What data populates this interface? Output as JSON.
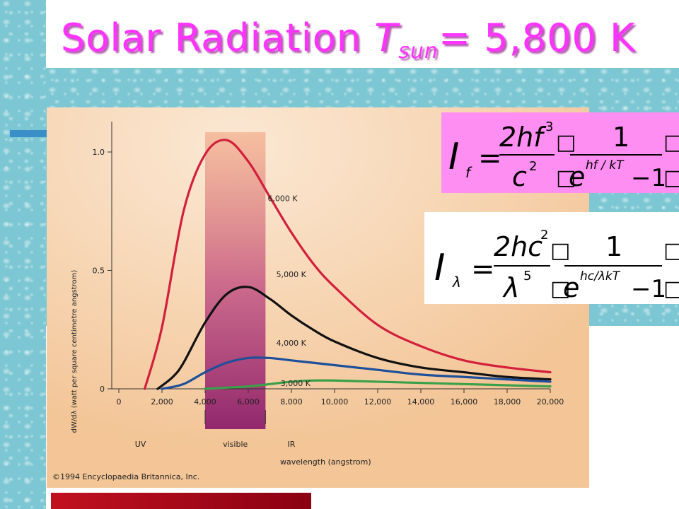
{
  "slide": {
    "title_main": "Solar Radiation ",
    "title_T": "T",
    "title_sub": "sun",
    "title_rest": "= 5,800 K"
  },
  "colors": {
    "title": "#ff33ff",
    "chart_bg": "#f6cda5",
    "visible_band": "#a3307a",
    "curve_6000": "#d31f3c",
    "curve_5000": "#111111",
    "curve_4000": "#1d4f9a",
    "curve_3000": "#3aa04a",
    "equation_box": "#ff8ef2"
  },
  "equations": {
    "eq1": {
      "lhs": "I",
      "lhs_sub": "f",
      "equals": "=",
      "num": "2hf",
      "num_exp": "3",
      "den": "c",
      "den_exp": "2",
      "frac2_num": "1",
      "exp_base": "e",
      "exp": "hf / kT",
      "minus_one": "−1",
      "box_glyph": "□"
    },
    "eq2": {
      "lhs": "I",
      "lhs_sub": "λ",
      "equals": "=",
      "num": "2hc",
      "num_exp": "2",
      "den": "λ",
      "den_exp": "5",
      "frac2_num": "1",
      "exp_base": "e",
      "exp": "hc/λkT",
      "minus_one": "−1",
      "box_glyph": "□"
    }
  },
  "chart_data": {
    "type": "line",
    "ylabel": "dW/dλ (watt per square centimetre angstrom)",
    "xlabel": "wavelength (angstrom)",
    "x_ticks": [
      "0",
      "2,000",
      "4,000",
      "6,000",
      "8,000",
      "10,000",
      "12,000",
      "14,000",
      "16,000",
      "18,000",
      "20,000"
    ],
    "x_tick_values": [
      0,
      2000,
      4000,
      6000,
      8000,
      10000,
      12000,
      14000,
      16000,
      18000,
      20000
    ],
    "y_ticks": [
      "0",
      "0.5",
      "1.0"
    ],
    "y_tick_values": [
      0,
      0.5,
      1.0
    ],
    "xlim": [
      0,
      20000
    ],
    "ylim": [
      0,
      1.15
    ],
    "regions": [
      {
        "label": "UV",
        "x": 1000
      },
      {
        "label": "visible",
        "x": 5400,
        "from": 4000,
        "to": 6800
      },
      {
        "label": "IR",
        "x": 8000
      }
    ],
    "copyright": "©1994 Encyclopaedia Britannica, Inc.",
    "series": [
      {
        "name": "6,000 K",
        "color": "#d31f3c",
        "temp": 6000,
        "x": [
          1200,
          2000,
          3000,
          4000,
          5000,
          6000,
          7000,
          8000,
          9000,
          10000,
          12000,
          14000,
          16000,
          18000,
          20000
        ],
        "y": [
          0.0,
          0.26,
          0.75,
          0.99,
          1.05,
          0.96,
          0.81,
          0.66,
          0.53,
          0.43,
          0.27,
          0.18,
          0.12,
          0.09,
          0.07
        ]
      },
      {
        "name": "5,000 K",
        "color": "#111111",
        "temp": 5000,
        "x": [
          1800,
          2500,
          3000,
          4000,
          5000,
          6000,
          7000,
          8000,
          9000,
          10000,
          12000,
          14000,
          16000,
          18000,
          20000
        ],
        "y": [
          0.0,
          0.05,
          0.11,
          0.28,
          0.4,
          0.43,
          0.38,
          0.31,
          0.25,
          0.2,
          0.13,
          0.09,
          0.07,
          0.05,
          0.04
        ]
      },
      {
        "name": "4,000 K",
        "color": "#1d4f9a",
        "temp": 4000,
        "x": [
          2000,
          3000,
          4000,
          5000,
          6000,
          7000,
          8000,
          9000,
          10000,
          12000,
          14000,
          16000,
          18000,
          20000
        ],
        "y": [
          0.0,
          0.02,
          0.07,
          0.11,
          0.13,
          0.13,
          0.12,
          0.11,
          0.1,
          0.08,
          0.06,
          0.05,
          0.04,
          0.03
        ]
      },
      {
        "name": "3,000 K",
        "color": "#3aa04a",
        "temp": 3000,
        "x": [
          4000,
          5000,
          6000,
          7000,
          8000,
          9000,
          10000,
          12000,
          14000,
          16000,
          18000,
          20000
        ],
        "y": [
          0.0,
          0.005,
          0.01,
          0.02,
          0.03,
          0.035,
          0.035,
          0.03,
          0.025,
          0.02,
          0.015,
          0.01
        ]
      }
    ]
  }
}
